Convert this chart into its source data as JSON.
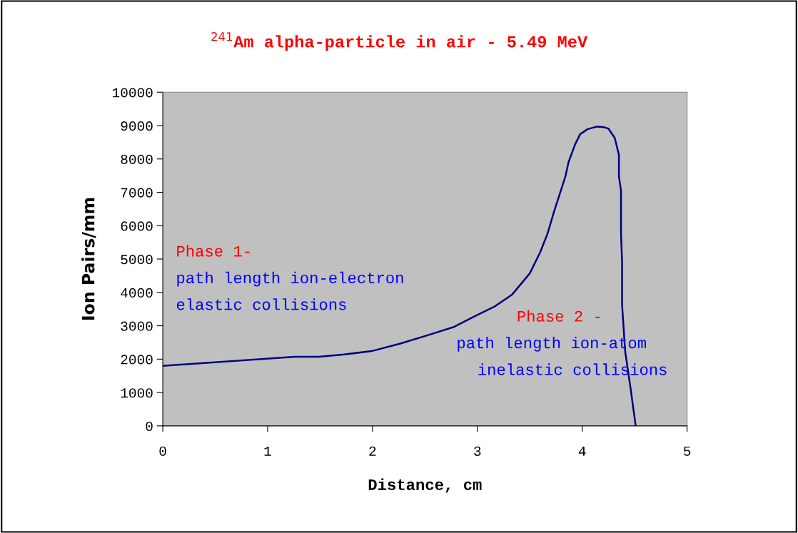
{
  "chart_data": {
    "type": "line",
    "title": "$^{241}$Am alpha-particle in air - 5.49 MeV",
    "xlabel": "Distance, cm",
    "ylabel": "Ion Pairs/mm",
    "x": [
      0,
      1.26,
      1.49,
      1.73,
      1.99,
      2.26,
      2.52,
      2.78,
      2.99,
      3.16,
      3.33,
      3.5,
      3.6,
      3.67,
      3.73,
      3.79,
      3.84,
      3.87,
      3.93,
      3.98,
      4.05,
      4.14,
      4.21,
      4.25,
      4.31,
      4.35,
      4.35,
      4.37,
      4.37,
      4.38,
      4.38,
      4.41,
      4.46,
      4.51
    ],
    "series": [
      {
        "color": "#000080",
        "values": [
          1800,
          2070,
          2070,
          2140,
          2240,
          2460,
          2710,
          2970,
          3310,
          3570,
          3930,
          4570,
          5210,
          5770,
          6410,
          6990,
          7480,
          7910,
          8420,
          8740,
          8890,
          8970,
          8950,
          8910,
          8630,
          8120,
          7480,
          7050,
          5770,
          4910,
          3630,
          2220,
          1150,
          0
        ]
      }
    ],
    "xlim": [
      0,
      5
    ],
    "xticks": [
      0,
      1,
      2,
      3,
      4,
      5
    ],
    "ylim": [
      0,
      10000
    ],
    "yticks": [
      0,
      1000,
      2000,
      3000,
      4000,
      5000,
      6000,
      7000,
      8000,
      9000,
      10000
    ],
    "grid": false,
    "marker": "none",
    "line_style": "solid",
    "annotations": [
      "Phase 1-",
      "path length ion-electron",
      "elastic collisions",
      "Phase 2 -",
      "path length ion-atom",
      "inelastic collisions"
    ]
  }
}
